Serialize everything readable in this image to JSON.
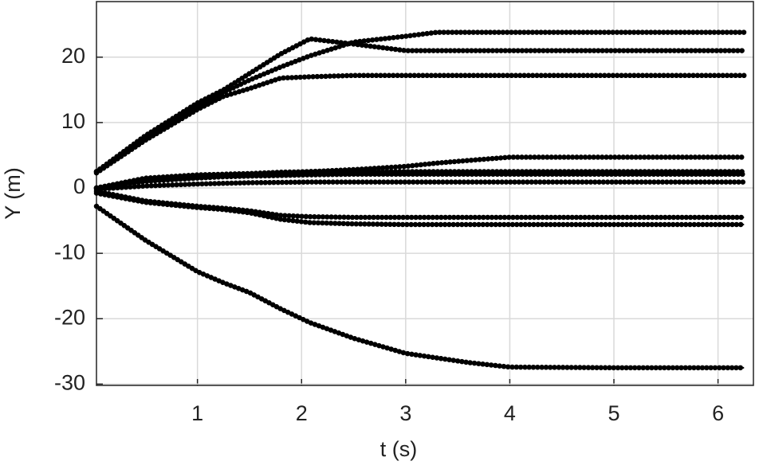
{
  "chart_data": {
    "type": "line",
    "x_label": "t (s)",
    "y_label": "Y (m)",
    "x": [
      0.03,
      0.5,
      1,
      1.25,
      1.5,
      1.8,
      2.08,
      2.5,
      3,
      3.3,
      3.6,
      4,
      5,
      6.25
    ],
    "series": [
      {
        "color": "#000000",
        "values": [
          2.5,
          8.0,
          13.0,
          15.0,
          17.5,
          20.5,
          22.8,
          22.0,
          21.0,
          21.0,
          21.0,
          21.0,
          21.0,
          21.0
        ]
      },
      {
        "color": "#000000",
        "values": [
          2.5,
          7.6,
          12.5,
          14.6,
          16.5,
          18.5,
          20.2,
          22.3,
          23.2,
          23.8,
          23.8,
          23.8,
          23.8,
          23.8
        ]
      },
      {
        "color": "#000000",
        "values": [
          2.3,
          7.3,
          12.0,
          14.0,
          15.2,
          16.8,
          17.0,
          17.2,
          17.2,
          17.2,
          17.2,
          17.2,
          17.2,
          17.2
        ]
      },
      {
        "color": "#000000",
        "values": [
          0,
          1.2,
          1.8,
          2.0,
          2.1,
          2.3,
          2.5,
          2.8,
          3.3,
          3.8,
          4.2,
          4.7,
          4.7,
          4.7
        ]
      },
      {
        "color": "#000000",
        "values": [
          0,
          1.5,
          2.0,
          2.1,
          2.2,
          2.4,
          2.5,
          2.5,
          2.5,
          2.5,
          2.5,
          2.5,
          2.5,
          2.5
        ]
      },
      {
        "color": "#000000",
        "values": [
          0,
          1.0,
          1.5,
          1.7,
          1.8,
          1.9,
          2.0,
          2.1,
          2.1,
          2.1,
          2.1,
          2.1,
          2.1,
          2.1
        ]
      },
      {
        "color": "#000000",
        "values": [
          -0.2,
          0.3,
          0.6,
          0.7,
          0.8,
          0.85,
          0.9,
          0.9,
          0.9,
          0.9,
          0.9,
          0.9,
          0.9,
          0.9
        ]
      },
      {
        "color": "#000000",
        "values": [
          -0.5,
          -2.0,
          -2.8,
          -3.1,
          -3.5,
          -4.2,
          -4.4,
          -4.5,
          -4.5,
          -4.5,
          -4.5,
          -4.5,
          -4.5,
          -4.5
        ]
      },
      {
        "color": "#000000",
        "values": [
          -0.8,
          -2.2,
          -3.0,
          -3.3,
          -3.8,
          -4.8,
          -5.3,
          -5.5,
          -5.6,
          -5.6,
          -5.6,
          -5.6,
          -5.6,
          -5.6
        ]
      },
      {
        "color": "#000000",
        "values": [
          -2.8,
          -8.0,
          -12.8,
          -14.5,
          -16.0,
          -18.5,
          -20.6,
          -23.0,
          -25.3,
          -26.0,
          -26.7,
          -27.4,
          -27.5,
          -27.5
        ]
      }
    ],
    "xlim": [
      0.03,
      6.34
    ],
    "xticks": [
      1,
      2,
      3,
      4,
      5,
      6
    ],
    "ylim": [
      -30.2,
      28.5
    ],
    "yticks": [
      -30,
      -20,
      -10,
      0,
      10,
      20
    ],
    "grid": true
  }
}
